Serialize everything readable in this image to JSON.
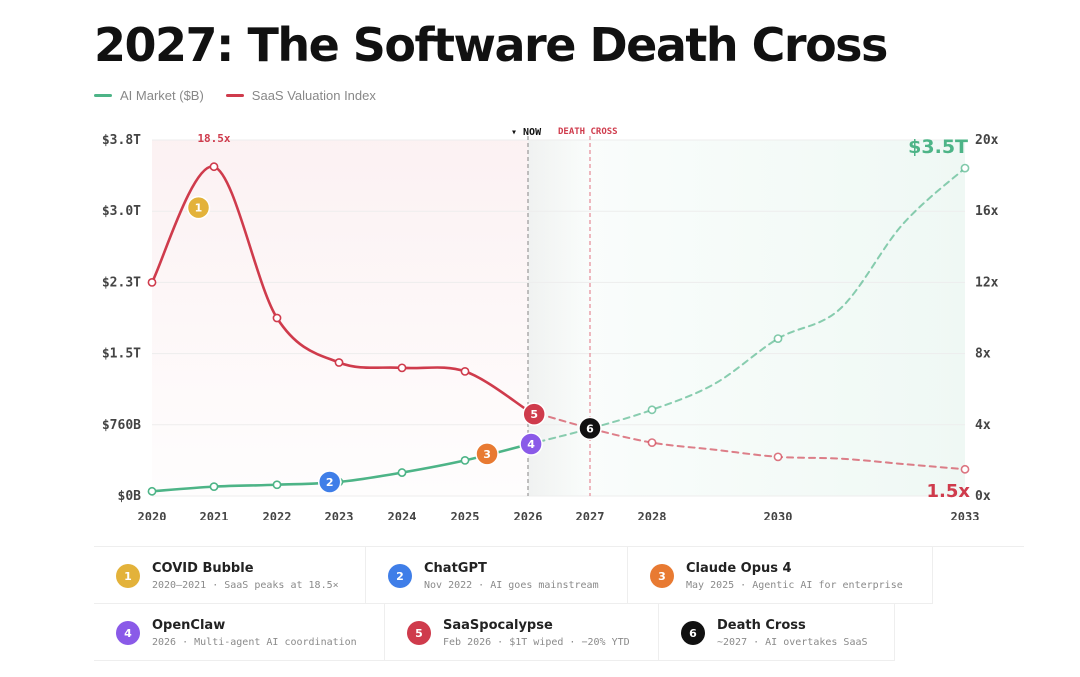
{
  "title": "2027: The Software Death Cross",
  "legend": [
    {
      "label": "AI Market ($B)",
      "color": "#4db487"
    },
    {
      "label": "SaaS Valuation Index",
      "color": "#cf3b4c"
    }
  ],
  "colors": {
    "ai": "#4db487",
    "saas": "#cf3b4c",
    "grid": "#ededed",
    "axis": "#444"
  },
  "chart_data": {
    "type": "line",
    "x_ticks": [
      "2020",
      "2021",
      "2022",
      "2023",
      "2024",
      "2025",
      "2026",
      "2027",
      "2028",
      "2030",
      "2033"
    ],
    "left_axis": {
      "ticks": [
        "$0B",
        "$760B",
        "$1.5T",
        "$2.3T",
        "$3.0T",
        "$3.8T"
      ],
      "values": [
        0,
        760,
        1520,
        2280,
        3040,
        3800
      ],
      "ylim": [
        0,
        3800
      ]
    },
    "right_axis": {
      "ticks": [
        "0x",
        "4x",
        "8x",
        "12x",
        "16x",
        "20x"
      ],
      "values": [
        0,
        4,
        8,
        12,
        16,
        20
      ],
      "ylim": [
        0,
        20
      ]
    },
    "series": [
      {
        "name": "AI Market ($B)",
        "axis": "left",
        "color": "#4db487",
        "x": [
          2020,
          2021,
          2022,
          2023,
          2024,
          2025,
          2026
        ],
        "y": [
          50,
          100,
          120,
          150,
          250,
          380,
          550
        ]
      },
      {
        "name": "AI Market ($B)",
        "axis": "left",
        "color": "#4db487",
        "projection": true,
        "x": [
          2026,
          2027,
          2028,
          2029,
          2030,
          2031,
          2032,
          2033
        ],
        "y": [
          550,
          720,
          920,
          1200,
          1680,
          2000,
          2900,
          3500
        ]
      },
      {
        "name": "SaaS Valuation Index",
        "axis": "right",
        "color": "#cf3b4c",
        "x": [
          2020,
          2021,
          2022,
          2023,
          2024,
          2025,
          2026
        ],
        "y": [
          12,
          18.5,
          10,
          7.5,
          7.2,
          7.0,
          4.8
        ]
      },
      {
        "name": "SaaS Valuation Index",
        "axis": "right",
        "color": "#cf3b4c",
        "projection": true,
        "x": [
          2026,
          2027,
          2028,
          2029,
          2030,
          2031,
          2032,
          2033
        ],
        "y": [
          4.8,
          3.8,
          3.0,
          2.6,
          2.2,
          2.1,
          1.8,
          1.5
        ]
      }
    ],
    "annotations": {
      "peak_label": "18.5x",
      "end_ai_label": "$3.5T",
      "end_saas_label": "1.5x",
      "now_label": "▾ NOW",
      "now_x": 2026,
      "death_cross_label": "DEATH CROSS",
      "death_cross_x": 2027
    },
    "markers": [
      {
        "n": "1",
        "x": 2020.75,
        "axis": "right",
        "y": 16.2,
        "color": "#e3b23a"
      },
      {
        "n": "2",
        "x": 2022.85,
        "axis": "left",
        "y": 150,
        "color": "#3f7ee8"
      },
      {
        "n": "3",
        "x": 2025.35,
        "axis": "left",
        "y": 450,
        "color": "#e87a32"
      },
      {
        "n": "4",
        "x": 2026.05,
        "axis": "left",
        "y": 555,
        "color": "#8a5ae8"
      },
      {
        "n": "5",
        "x": 2026.1,
        "axis": "right",
        "y": 4.6,
        "color": "#cf3b4c"
      },
      {
        "n": "6",
        "x": 2027.0,
        "axis": "right",
        "y": 3.8,
        "color": "#111111"
      }
    ]
  },
  "events": [
    {
      "n": "1",
      "title": "COVID Bubble",
      "sub": "2020–2021 · SaaS peaks at 18.5×",
      "color": "#e3b23a"
    },
    {
      "n": "2",
      "title": "ChatGPT",
      "sub": "Nov 2022 · AI goes mainstream",
      "color": "#3f7ee8"
    },
    {
      "n": "3",
      "title": "Claude Opus 4",
      "sub": "May 2025 · Agentic AI for enterprise",
      "color": "#e87a32"
    },
    {
      "n": "4",
      "title": "OpenClaw",
      "sub": "2026 · Multi-agent AI coordination",
      "color": "#8a5ae8"
    },
    {
      "n": "5",
      "title": "SaaSpocalypse",
      "sub": "Feb 2026 · $1T wiped · −20% YTD",
      "color": "#cf3b4c"
    },
    {
      "n": "6",
      "title": "Death Cross",
      "sub": "~2027 · AI overtakes SaaS",
      "color": "#111111"
    }
  ]
}
